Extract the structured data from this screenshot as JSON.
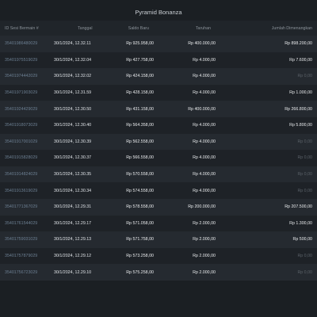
{
  "title": "Pyramid Bonanza",
  "headers": {
    "id": "ID Sesi Bermain #",
    "date": "Tanggal",
    "saldo": "Saldo Baru",
    "taruhan": "Taruhan",
    "win": "Jumlah Dimenangkan"
  },
  "rows": [
    {
      "id": "35401986480029",
      "date": "30/1/2024, 12.32.11",
      "saldo": "Rp 925.958,00",
      "taruhan": "Rp 400.000,00",
      "win": "Rp 898.200,00",
      "win_zero": false
    },
    {
      "id": "35401975519029",
      "date": "30/1/2024, 12.32.04",
      "saldo": "Rp 427.758,00",
      "taruhan": "Rp 4.000,00",
      "win": "Rp 7.600,00",
      "win_zero": false
    },
    {
      "id": "35401974442029",
      "date": "30/1/2024, 12.32.02",
      "saldo": "Rp 424.158,00",
      "taruhan": "Rp 4.000,00",
      "win": "Rp 0,00",
      "win_zero": true
    },
    {
      "id": "35401971903029",
      "date": "30/1/2024, 12.31.59",
      "saldo": "Rp 428.158,00",
      "taruhan": "Rp 4.000,00",
      "win": "Rp 1.000,00",
      "win_zero": false
    },
    {
      "id": "35401924429029",
      "date": "30/1/2024, 12.30.50",
      "saldo": "Rp 431.158,00",
      "taruhan": "Rp 400.000,00",
      "win": "Rp 266.800,00",
      "win_zero": false
    },
    {
      "id": "35401918073029",
      "date": "30/1/2024, 12.30.40",
      "saldo": "Rp 564.358,00",
      "taruhan": "Rp 4.000,00",
      "win": "Rp 5.800,00",
      "win_zero": false
    },
    {
      "id": "35401917001029",
      "date": "30/1/2024, 12.30.39",
      "saldo": "Rp 562.558,00",
      "taruhan": "Rp 4.000,00",
      "win": "Rp 0,00",
      "win_zero": true
    },
    {
      "id": "35401915828029",
      "date": "30/1/2024, 12.30.37",
      "saldo": "Rp 566.558,00",
      "taruhan": "Rp 4.000,00",
      "win": "Rp 0,00",
      "win_zero": true
    },
    {
      "id": "35401914824029",
      "date": "30/1/2024, 12.30.35",
      "saldo": "Rp 570.558,00",
      "taruhan": "Rp 4.000,00",
      "win": "Rp 0,00",
      "win_zero": true
    },
    {
      "id": "35401913619029",
      "date": "30/1/2024, 12.30.34",
      "saldo": "Rp 574.558,00",
      "taruhan": "Rp 4.000,00",
      "win": "Rp 0,00",
      "win_zero": true
    },
    {
      "id": "35401771367029",
      "date": "30/1/2024, 12.29.31",
      "saldo": "Rp 578.558,00",
      "taruhan": "Rp 200.000,00",
      "win": "Rp 207.500,00",
      "win_zero": false
    },
    {
      "id": "35401761544029",
      "date": "30/1/2024, 12.29.17",
      "saldo": "Rp 571.058,00",
      "taruhan": "Rp 2.000,00",
      "win": "Rp 1.300,00",
      "win_zero": false
    },
    {
      "id": "35401759031029",
      "date": "30/1/2024, 12.29.13",
      "saldo": "Rp 571.758,00",
      "taruhan": "Rp 2.000,00",
      "win": "Rp 500,00",
      "win_zero": false
    },
    {
      "id": "35401757879029",
      "date": "30/1/2024, 12.29.12",
      "saldo": "Rp 573.258,00",
      "taruhan": "Rp 2.000,00",
      "win": "Rp 0,00",
      "win_zero": true
    },
    {
      "id": "35401756723029",
      "date": "30/1/2024, 12.29.10",
      "saldo": "Rp 575.258,00",
      "taruhan": "Rp 2.000,00",
      "win": "Rp 0,00",
      "win_zero": true
    }
  ]
}
